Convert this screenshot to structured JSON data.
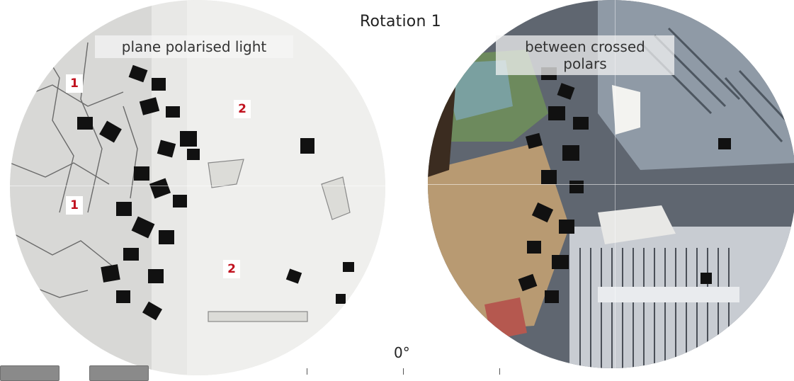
{
  "title": "Rotation 1",
  "views": {
    "left_caption": "plane polarised light",
    "right_caption": "between crossed polars"
  },
  "markers": [
    "1",
    "2",
    "1",
    "2"
  ],
  "angle_readout": "0°",
  "controls": {
    "rotate_left_icon": "rotate-left-icon",
    "rotate_right_icon": "rotate-right-icon"
  },
  "colors": {
    "marker_text": "#c1121f",
    "opaque_mineral": "#111111"
  }
}
